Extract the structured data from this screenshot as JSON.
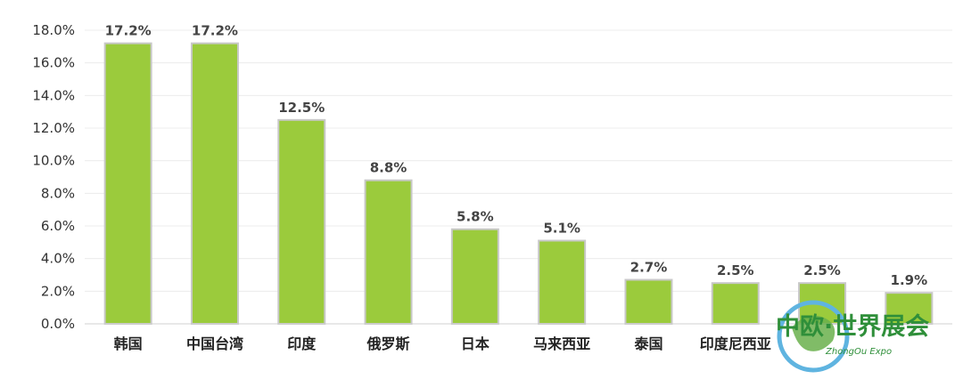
{
  "chart_data": {
    "type": "bar",
    "categories": [
      "韩国",
      "中国台湾",
      "印度",
      "俄罗斯",
      "日本",
      "马来西亚",
      "泰国",
      "印度尼西亚",
      "",
      ""
    ],
    "values": [
      17.2,
      17.2,
      12.5,
      8.8,
      5.8,
      5.1,
      2.7,
      2.5,
      2.5,
      1.9
    ],
    "data_labels": [
      "17.2%",
      "17.2%",
      "12.5%",
      "8.8%",
      "5.8%",
      "5.1%",
      "2.7%",
      "2.5%",
      "2.5%",
      "1.9%"
    ],
    "ylim": [
      0,
      18
    ],
    "yticks": [
      0,
      2,
      4,
      6,
      8,
      10,
      12,
      14,
      16,
      18
    ],
    "ytick_labels": [
      "0.0%",
      "2.0%",
      "4.0%",
      "6.0%",
      "8.0%",
      "10.0%",
      "12.0%",
      "14.0%",
      "16.0%",
      "18.0%"
    ],
    "grid": true,
    "bar_color": "#9bcb3c",
    "bar_edge_color": "#c8c8c8"
  },
  "watermark": {
    "title": "中欧·世界展会",
    "subtitle": "ZhongOu Expo"
  }
}
